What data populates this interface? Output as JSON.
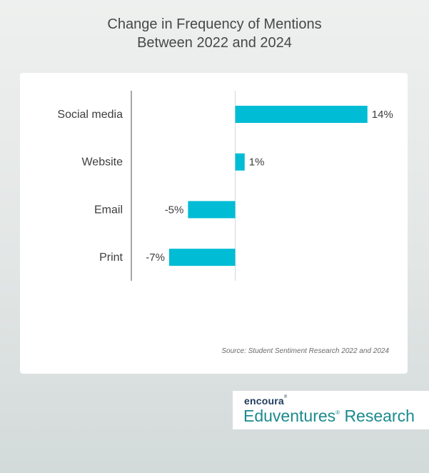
{
  "title_lines": [
    "Change in Frequency of Mentions",
    "Between 2022 and 2024"
  ],
  "source": "Source: Student Sentiment Research 2022 and 2024",
  "brand": {
    "top": "encoura",
    "bottom": "Eduventures",
    "bottom_suffix": "Research",
    "reg_mark": "®"
  },
  "colors": {
    "bar": "#00bcd4",
    "axis": "#8a8a8a",
    "zero_line": "#d7d7d7",
    "text": "#3d3d3d"
  },
  "chart_data": {
    "type": "bar",
    "orientation": "horizontal",
    "title": "Change in Frequency of Mentions Between 2022 and 2024",
    "categories": [
      "Social media",
      "Website",
      "Email",
      "Print"
    ],
    "values": [
      14,
      1,
      -5,
      -7
    ],
    "value_labels": [
      "14%",
      "1%",
      "-5%",
      "-7%"
    ],
    "unit": "%",
    "xlim": [
      -11,
      15
    ],
    "grid": false,
    "legend": "none"
  }
}
